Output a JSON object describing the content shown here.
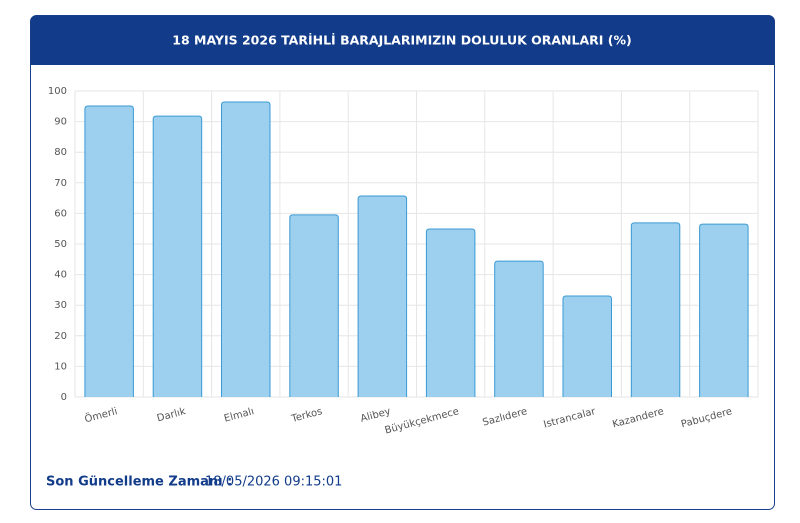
{
  "header": {
    "title": "18 MAYIS 2026 TARİHLİ BARAJLARIMIZIN DOLULUK ORANLARI (%)"
  },
  "chart_data": {
    "type": "bar",
    "categories": [
      "Ömerli",
      "Darlık",
      "Elmalı",
      "Terkos",
      "Alibey",
      "Büyükçekmece",
      "Sazlıdere",
      "Istrancalar",
      "Kazandere",
      "Pabuçdere"
    ],
    "values": [
      95.1,
      91.8,
      96.4,
      59.5,
      65.7,
      54.9,
      44.4,
      33.0,
      56.9,
      56.5
    ],
    "color": "#9dd0ee",
    "border_color": "#3a9ad4",
    "ylim": [
      0,
      100
    ],
    "yticks": [
      0,
      10,
      20,
      30,
      40,
      50,
      60,
      70,
      80,
      90,
      100
    ],
    "grid": true
  },
  "footer": {
    "label": "Son Güncelleme Zamanı :",
    "value": "18/05/2026 09:15:01"
  }
}
